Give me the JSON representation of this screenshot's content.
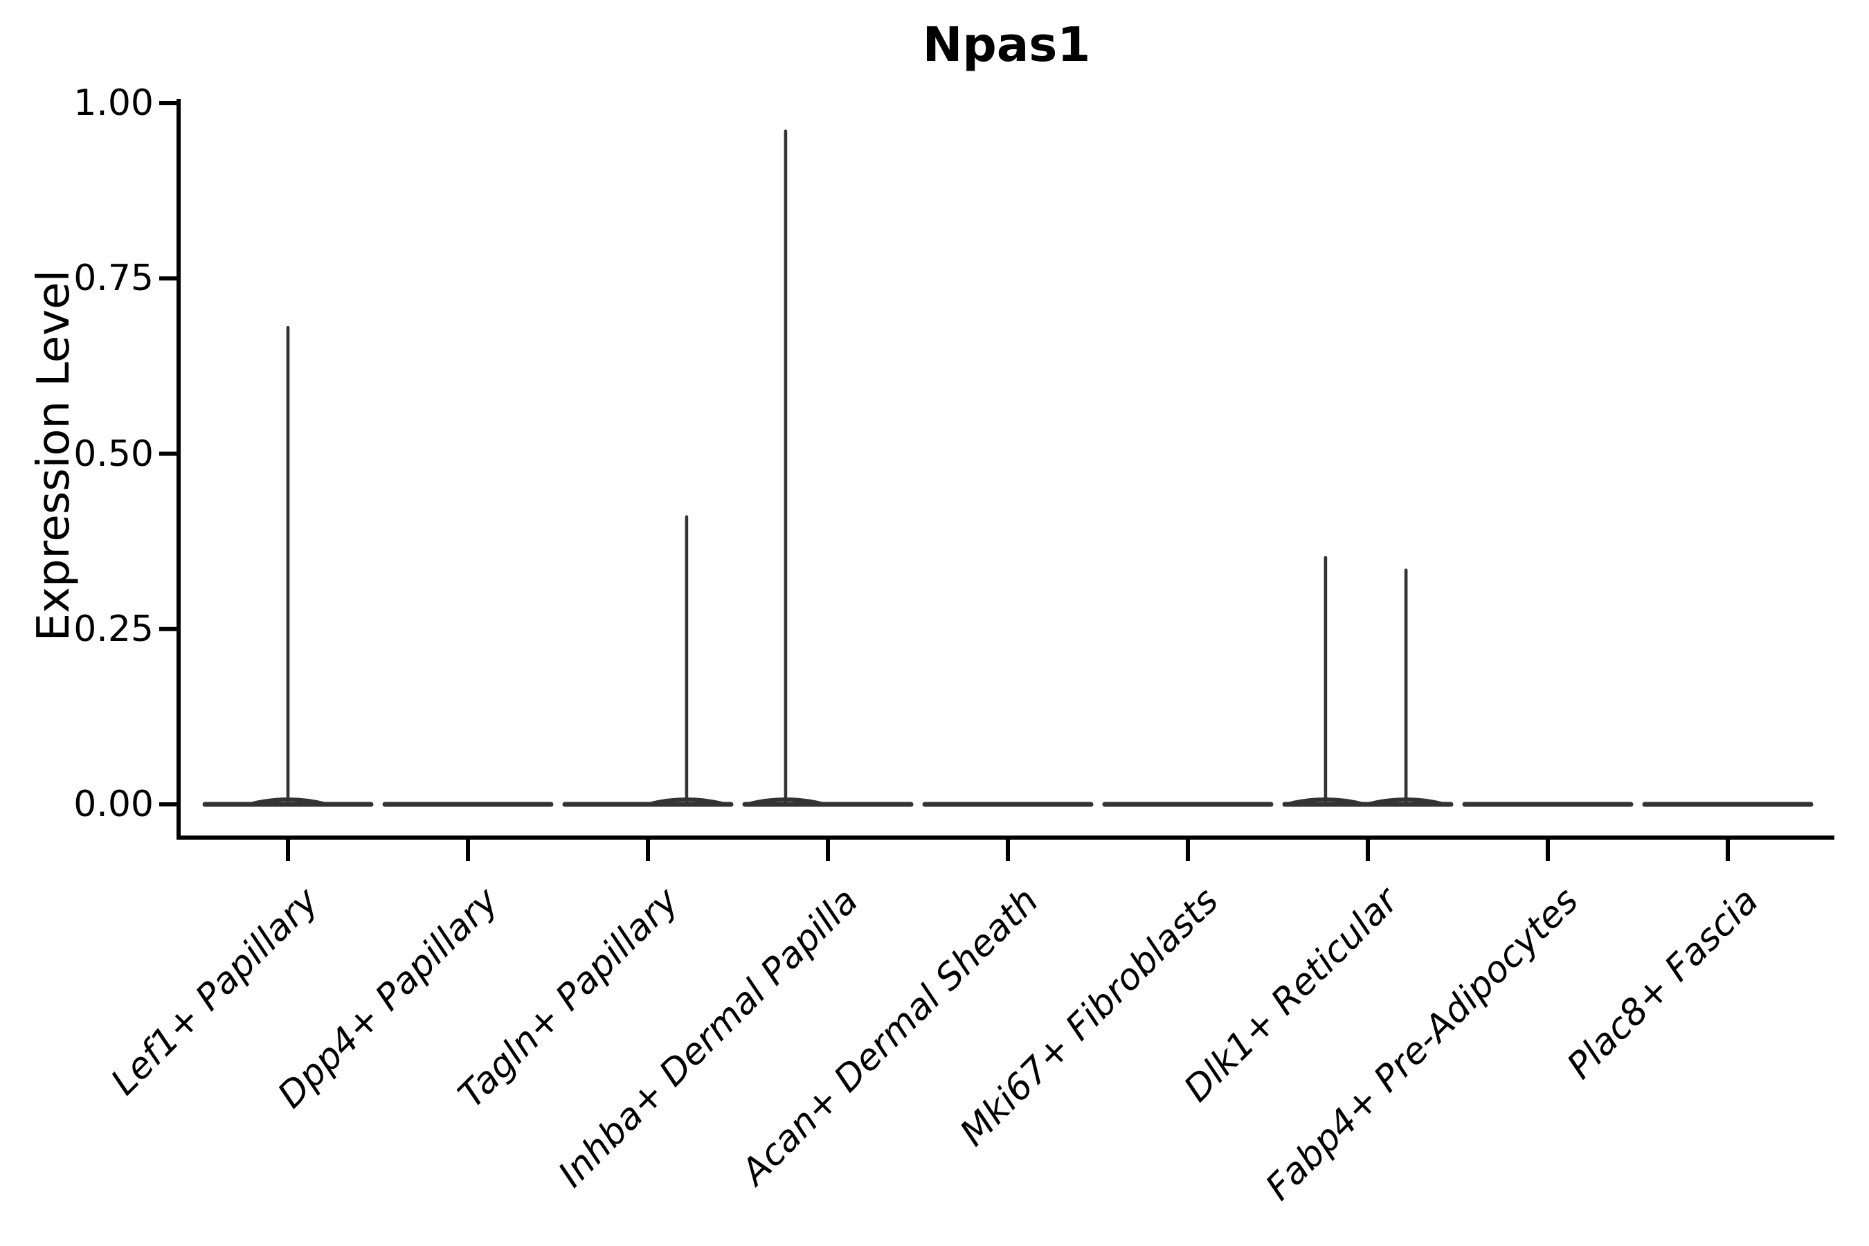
{
  "chart_data": {
    "type": "violin",
    "title": "Npas1",
    "xlabel": "",
    "ylabel": "Expression Level",
    "ylim": [
      0,
      1.0
    ],
    "grid": false,
    "legend": "none",
    "yticks": [
      {
        "label": "0.00",
        "value": 0.0
      },
      {
        "label": "0.25",
        "value": 0.25
      },
      {
        "label": "0.50",
        "value": 0.5
      },
      {
        "label": "0.75",
        "value": 0.75
      },
      {
        "label": "1.00",
        "value": 1.0
      }
    ],
    "categories": [
      "Lef1+ Papillary",
      "Dpp4+ Papillary",
      "Tagln+ Papillary",
      "Inhba+ Dermal Papilla",
      "Acan+ Dermal Sheath",
      "Mki67+ Fibroblasts",
      "Dlk1+ Reticular",
      "Fabp4+ Pre-Adipocytes",
      "Plac8+ Fascia"
    ],
    "violins": [
      {
        "category": "Lef1+ Papillary",
        "body": "flat-at-zero",
        "spikes": [
          {
            "x_offset_frac": 0.0,
            "max_value": 0.68
          }
        ]
      },
      {
        "category": "Dpp4+ Papillary",
        "body": "flat-at-zero",
        "spikes": []
      },
      {
        "category": "Tagln+ Papillary",
        "body": "flat-at-zero",
        "spikes": [
          {
            "x_offset_frac": 0.215,
            "max_value": 0.41
          }
        ]
      },
      {
        "category": "Inhba+ Dermal Papilla",
        "body": "flat-at-zero",
        "spikes": [
          {
            "x_offset_frac": -0.235,
            "max_value": 0.96
          }
        ]
      },
      {
        "category": "Acan+ Dermal Sheath",
        "body": "flat-at-zero",
        "spikes": []
      },
      {
        "category": "Mki67+ Fibroblasts",
        "body": "flat-at-zero",
        "spikes": []
      },
      {
        "category": "Dlk1+ Reticular",
        "body": "flat-at-zero",
        "spikes": [
          {
            "x_offset_frac": -0.235,
            "max_value": 0.352
          },
          {
            "x_offset_frac": 0.212,
            "max_value": 0.334
          }
        ]
      },
      {
        "category": "Fabp4+ Pre-Adipocytes",
        "body": "flat-at-zero",
        "spikes": []
      },
      {
        "category": "Plac8+ Fascia",
        "body": "flat-at-zero",
        "spikes": []
      }
    ],
    "colors": {
      "background": "#ffffff",
      "axis": "#000000",
      "text": "#000000",
      "violin_stroke": "#333333"
    }
  }
}
